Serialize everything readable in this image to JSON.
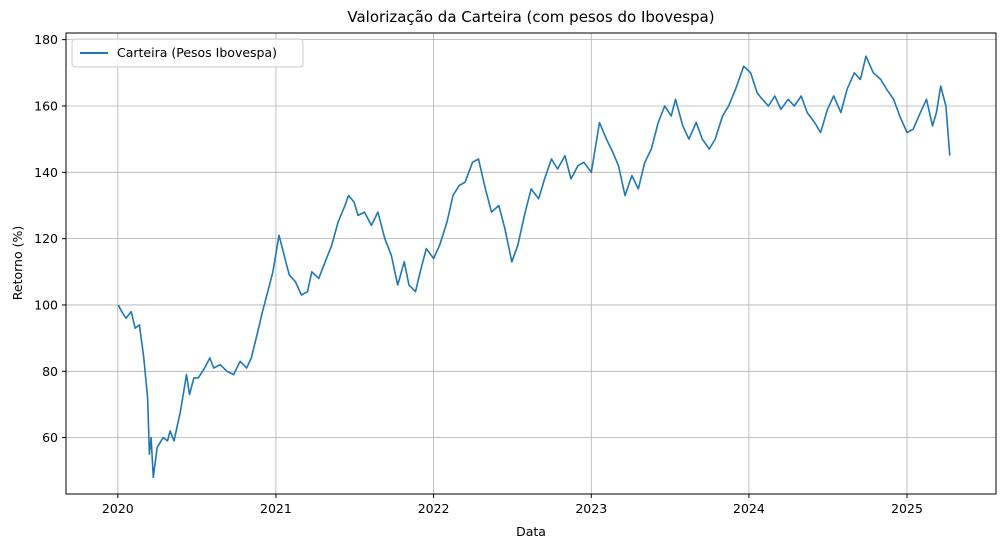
{
  "chart_data": {
    "type": "line",
    "title": "Valorização da Carteira (com pesos do Ibovespa)",
    "xlabel": "Data",
    "ylabel": "Retorno (%)",
    "xlim": [
      "2019-09-03",
      "2025-07-26"
    ],
    "ylim": [
      43,
      182
    ],
    "x_ticks": [
      "2020",
      "2021",
      "2022",
      "2023",
      "2024",
      "2025"
    ],
    "y_ticks": [
      60,
      80,
      100,
      120,
      140,
      160,
      180
    ],
    "grid": true,
    "legend_position": "top-left",
    "series": [
      {
        "name": "Carteira (Pesos Ibovespa)",
        "color": "#1f77b4",
        "points": [
          [
            "2020-01-02",
            100
          ],
          [
            "2020-01-10",
            98
          ],
          [
            "2020-01-20",
            96
          ],
          [
            "2020-02-01",
            98
          ],
          [
            "2020-02-10",
            93
          ],
          [
            "2020-02-20",
            94
          ],
          [
            "2020-03-01",
            84
          ],
          [
            "2020-03-10",
            72
          ],
          [
            "2020-03-14",
            55
          ],
          [
            "2020-03-18",
            60
          ],
          [
            "2020-03-23",
            48
          ],
          [
            "2020-04-01",
            57
          ],
          [
            "2020-04-15",
            60
          ],
          [
            "2020-04-25",
            59
          ],
          [
            "2020-05-01",
            62
          ],
          [
            "2020-05-10",
            59
          ],
          [
            "2020-05-25",
            68
          ],
          [
            "2020-06-08",
            79
          ],
          [
            "2020-06-15",
            73
          ],
          [
            "2020-06-25",
            78
          ],
          [
            "2020-07-05",
            78
          ],
          [
            "2020-07-20",
            81
          ],
          [
            "2020-08-01",
            84
          ],
          [
            "2020-08-10",
            81
          ],
          [
            "2020-08-25",
            82
          ],
          [
            "2020-09-10",
            80
          ],
          [
            "2020-09-25",
            79
          ],
          [
            "2020-10-10",
            83
          ],
          [
            "2020-10-25",
            81
          ],
          [
            "2020-11-05",
            84
          ],
          [
            "2020-11-20",
            92
          ],
          [
            "2020-12-01",
            98
          ],
          [
            "2020-12-15",
            105
          ],
          [
            "2020-12-25",
            110
          ],
          [
            "2021-01-08",
            121
          ],
          [
            "2021-01-20",
            115
          ],
          [
            "2021-02-01",
            109
          ],
          [
            "2021-02-15",
            107
          ],
          [
            "2021-03-01",
            103
          ],
          [
            "2021-03-15",
            104
          ],
          [
            "2021-03-25",
            110
          ],
          [
            "2021-04-10",
            108
          ],
          [
            "2021-04-25",
            113
          ],
          [
            "2021-05-10",
            118
          ],
          [
            "2021-05-25",
            125
          ],
          [
            "2021-06-10",
            130
          ],
          [
            "2021-06-18",
            133
          ],
          [
            "2021-07-01",
            131
          ],
          [
            "2021-07-10",
            127
          ],
          [
            "2021-07-25",
            128
          ],
          [
            "2021-08-10",
            124
          ],
          [
            "2021-08-25",
            128
          ],
          [
            "2021-09-10",
            120
          ],
          [
            "2021-09-25",
            115
          ],
          [
            "2021-10-10",
            106
          ],
          [
            "2021-10-25",
            113
          ],
          [
            "2021-11-05",
            106
          ],
          [
            "2021-11-20",
            104
          ],
          [
            "2021-12-01",
            110
          ],
          [
            "2021-12-15",
            117
          ],
          [
            "2022-01-01",
            114
          ],
          [
            "2022-01-15",
            118
          ],
          [
            "2022-02-01",
            125
          ],
          [
            "2022-02-15",
            133
          ],
          [
            "2022-03-01",
            136
          ],
          [
            "2022-03-15",
            137
          ],
          [
            "2022-04-01",
            143
          ],
          [
            "2022-04-15",
            144
          ],
          [
            "2022-05-01",
            135
          ],
          [
            "2022-05-15",
            128
          ],
          [
            "2022-06-01",
            130
          ],
          [
            "2022-06-15",
            123
          ],
          [
            "2022-07-01",
            113
          ],
          [
            "2022-07-15",
            118
          ],
          [
            "2022-08-01",
            128
          ],
          [
            "2022-08-15",
            135
          ],
          [
            "2022-09-01",
            132
          ],
          [
            "2022-09-15",
            138
          ],
          [
            "2022-10-01",
            144
          ],
          [
            "2022-10-15",
            141
          ],
          [
            "2022-11-01",
            145
          ],
          [
            "2022-11-15",
            138
          ],
          [
            "2022-12-01",
            142
          ],
          [
            "2022-12-15",
            143
          ],
          [
            "2023-01-01",
            140
          ],
          [
            "2023-01-20",
            155
          ],
          [
            "2023-02-05",
            150
          ],
          [
            "2023-02-20",
            146
          ],
          [
            "2023-03-05",
            142
          ],
          [
            "2023-03-20",
            133
          ],
          [
            "2023-04-05",
            139
          ],
          [
            "2023-04-20",
            135
          ],
          [
            "2023-05-05",
            143
          ],
          [
            "2023-05-20",
            147
          ],
          [
            "2023-06-05",
            155
          ],
          [
            "2023-06-20",
            160
          ],
          [
            "2023-07-05",
            157
          ],
          [
            "2023-07-15",
            162
          ],
          [
            "2023-08-01",
            154
          ],
          [
            "2023-08-15",
            150
          ],
          [
            "2023-09-01",
            155
          ],
          [
            "2023-09-15",
            150
          ],
          [
            "2023-10-01",
            147
          ],
          [
            "2023-10-15",
            150
          ],
          [
            "2023-11-01",
            157
          ],
          [
            "2023-11-15",
            160
          ],
          [
            "2023-12-01",
            165
          ],
          [
            "2023-12-20",
            172
          ],
          [
            "2024-01-05",
            170
          ],
          [
            "2024-01-20",
            164
          ],
          [
            "2024-02-01",
            162
          ],
          [
            "2024-02-15",
            160
          ],
          [
            "2024-03-01",
            163
          ],
          [
            "2024-03-15",
            159
          ],
          [
            "2024-04-01",
            162
          ],
          [
            "2024-04-15",
            160
          ],
          [
            "2024-05-01",
            163
          ],
          [
            "2024-05-15",
            158
          ],
          [
            "2024-06-01",
            155
          ],
          [
            "2024-06-15",
            152
          ],
          [
            "2024-07-01",
            159
          ],
          [
            "2024-07-15",
            163
          ],
          [
            "2024-08-01",
            158
          ],
          [
            "2024-08-15",
            165
          ],
          [
            "2024-09-01",
            170
          ],
          [
            "2024-09-15",
            168
          ],
          [
            "2024-09-28",
            175
          ],
          [
            "2024-10-15",
            170
          ],
          [
            "2024-11-01",
            168
          ],
          [
            "2024-11-15",
            165
          ],
          [
            "2024-12-01",
            162
          ],
          [
            "2024-12-15",
            157
          ],
          [
            "2025-01-01",
            152
          ],
          [
            "2025-01-15",
            153
          ],
          [
            "2025-02-01",
            158
          ],
          [
            "2025-02-15",
            162
          ],
          [
            "2025-03-01",
            154
          ],
          [
            "2025-03-10",
            158
          ],
          [
            "2025-03-20",
            166
          ],
          [
            "2025-04-01",
            160
          ],
          [
            "2025-04-10",
            145
          ]
        ]
      }
    ]
  }
}
